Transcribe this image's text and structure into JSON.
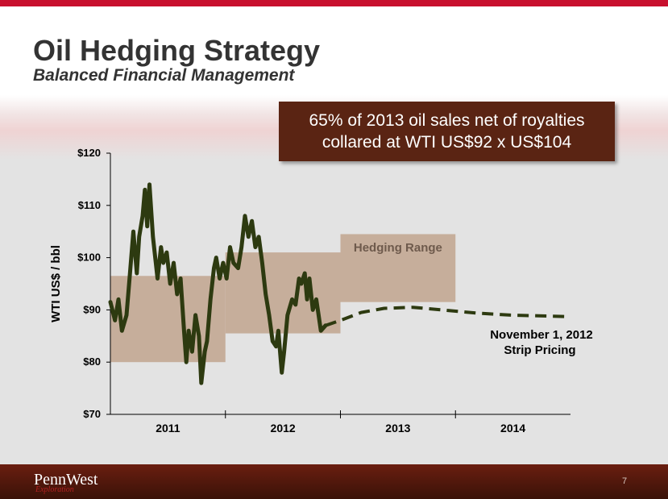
{
  "slide": {
    "title": "Oil Hedging Strategy",
    "subtitle": "Balanced Financial Management",
    "callout_line1": "65% of 2013 oil sales net of royalties",
    "callout_line2": "collared at WTI US$92 x US$104",
    "logo": "PennWest",
    "logo_sub": "Exploration",
    "page_number": "7"
  },
  "colors": {
    "accent": "#c8102e",
    "callout_bg": "#5a2413",
    "hedge_fill": "#c6ae9b",
    "price_line": "#2d3a10",
    "axis_text": "#000000"
  },
  "chart_data": {
    "type": "line",
    "ylabel": "WTI US$ / bbl",
    "ylim": [
      70,
      120
    ],
    "yticks": [
      70,
      80,
      90,
      100,
      110,
      120
    ],
    "ytick_labels": [
      "$70",
      "$80",
      "$90",
      "$100",
      "$110",
      "$120"
    ],
    "xlim": [
      2010.92,
      2014.92
    ],
    "x_dividers": [
      2011.92,
      2012.92,
      2013.92
    ],
    "categories": [
      "2011",
      "2012",
      "2013",
      "2014"
    ],
    "hedging_range_label": "Hedging Range",
    "strip_label_line1": "November 1, 2012",
    "strip_label_line2": "Strip Pricing",
    "hedging_ranges": [
      {
        "x_start": 2010.92,
        "x_end": 2011.92,
        "low": 80,
        "high": 96.5
      },
      {
        "x_start": 2011.92,
        "x_end": 2012.92,
        "low": 85.5,
        "high": 101
      },
      {
        "x_start": 2012.92,
        "x_end": 2013.92,
        "low": 91.5,
        "high": 104.5
      }
    ],
    "series": [
      {
        "style": "solid",
        "points": [
          [
            2010.92,
            91.5
          ],
          [
            2010.96,
            88
          ],
          [
            2010.99,
            92
          ],
          [
            2011.02,
            86
          ],
          [
            2011.06,
            89
          ],
          [
            2011.09,
            97
          ],
          [
            2011.12,
            105
          ],
          [
            2011.15,
            97
          ],
          [
            2011.17,
            104
          ],
          [
            2011.2,
            108
          ],
          [
            2011.22,
            113
          ],
          [
            2011.24,
            106
          ],
          [
            2011.26,
            114
          ],
          [
            2011.29,
            104
          ],
          [
            2011.33,
            96
          ],
          [
            2011.36,
            102
          ],
          [
            2011.38,
            99
          ],
          [
            2011.41,
            101
          ],
          [
            2011.44,
            95
          ],
          [
            2011.47,
            99
          ],
          [
            2011.5,
            93
          ],
          [
            2011.53,
            96
          ],
          [
            2011.56,
            86
          ],
          [
            2011.58,
            80
          ],
          [
            2011.6,
            86
          ],
          [
            2011.63,
            82
          ],
          [
            2011.66,
            89
          ],
          [
            2011.69,
            85
          ],
          [
            2011.71,
            76
          ],
          [
            2011.74,
            82
          ],
          [
            2011.76,
            84
          ],
          [
            2011.79,
            92
          ],
          [
            2011.82,
            98
          ],
          [
            2011.84,
            100
          ],
          [
            2011.87,
            96
          ],
          [
            2011.9,
            99
          ],
          [
            2011.93,
            96
          ],
          [
            2011.96,
            102
          ],
          [
            2011.99,
            99
          ],
          [
            2012.03,
            98
          ],
          [
            2012.06,
            102
          ],
          [
            2012.09,
            108
          ],
          [
            2012.12,
            104
          ],
          [
            2012.15,
            107
          ],
          [
            2012.18,
            102
          ],
          [
            2012.21,
            104
          ],
          [
            2012.24,
            99
          ],
          [
            2012.27,
            93
          ],
          [
            2012.3,
            89
          ],
          [
            2012.33,
            84
          ],
          [
            2012.36,
            83
          ],
          [
            2012.38,
            86
          ],
          [
            2012.41,
            78
          ],
          [
            2012.43,
            82
          ],
          [
            2012.46,
            89
          ],
          [
            2012.5,
            92
          ],
          [
            2012.53,
            91
          ],
          [
            2012.56,
            96
          ],
          [
            2012.58,
            95
          ],
          [
            2012.61,
            97
          ],
          [
            2012.63,
            92
          ],
          [
            2012.65,
            96
          ],
          [
            2012.68,
            90
          ],
          [
            2012.71,
            92
          ],
          [
            2012.73,
            89
          ],
          [
            2012.75,
            86
          ],
          [
            2012.79,
            87
          ]
        ]
      },
      {
        "style": "dashed",
        "points": [
          [
            2012.79,
            87
          ],
          [
            2012.92,
            88
          ],
          [
            2013.1,
            89.5
          ],
          [
            2013.3,
            90.3
          ],
          [
            2013.55,
            90.5
          ],
          [
            2013.8,
            90
          ],
          [
            2014.1,
            89.4
          ],
          [
            2014.4,
            89
          ],
          [
            2014.92,
            88.7
          ]
        ]
      }
    ]
  }
}
